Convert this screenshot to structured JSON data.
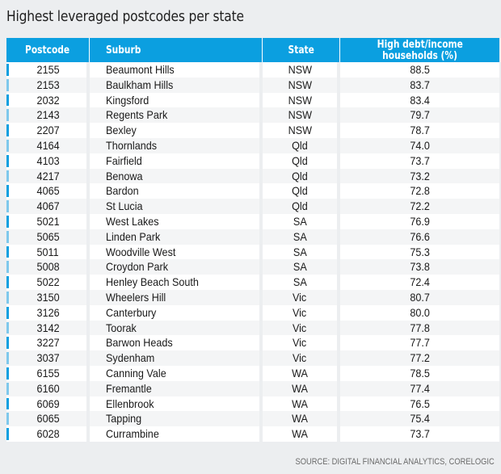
{
  "title": "Highest leveraged postcodes per state",
  "colors": {
    "header_bg": "#0b9fe0",
    "accent_dark": "#0b9fe0",
    "accent_light": "#7fc8ec",
    "page_bg": "#eceef0"
  },
  "headers": {
    "postcode": "Postcode",
    "suburb": "Suburb",
    "state": "State",
    "value_line1": "High debt/income",
    "value_line2": "households (%)"
  },
  "chart_data": {
    "type": "table",
    "title": "Highest leveraged postcodes per state",
    "columns": [
      "Postcode",
      "Suburb",
      "State",
      "High debt/income households (%)"
    ],
    "rows": [
      {
        "postcode": "2155",
        "suburb": "Beaumont Hills",
        "state": "NSW",
        "value": "88.5"
      },
      {
        "postcode": "2153",
        "suburb": "Baulkham Hills",
        "state": "NSW",
        "value": "83.7"
      },
      {
        "postcode": "2032",
        "suburb": "Kingsford",
        "state": "NSW",
        "value": "83.4"
      },
      {
        "postcode": "2143",
        "suburb": "Regents Park",
        "state": "NSW",
        "value": "79.7"
      },
      {
        "postcode": "2207",
        "suburb": "Bexley",
        "state": "NSW",
        "value": "78.7"
      },
      {
        "postcode": "4164",
        "suburb": "Thornlands",
        "state": "Qld",
        "value": "74.0"
      },
      {
        "postcode": "4103",
        "suburb": "Fairfield",
        "state": "Qld",
        "value": "73.7"
      },
      {
        "postcode": "4217",
        "suburb": "Benowa",
        "state": "Qld",
        "value": "73.2"
      },
      {
        "postcode": "4065",
        "suburb": "Bardon",
        "state": "Qld",
        "value": "72.8"
      },
      {
        "postcode": "4067",
        "suburb": "St Lucia",
        "state": "Qld",
        "value": "72.2"
      },
      {
        "postcode": "5021",
        "suburb": "West Lakes",
        "state": "SA",
        "value": "76.9"
      },
      {
        "postcode": "5065",
        "suburb": "Linden Park",
        "state": "SA",
        "value": "76.6"
      },
      {
        "postcode": "5011",
        "suburb": "Woodville West",
        "state": "SA",
        "value": "75.3"
      },
      {
        "postcode": "5008",
        "suburb": "Croydon Park",
        "state": "SA",
        "value": "73.8"
      },
      {
        "postcode": "5022",
        "suburb": "Henley Beach South",
        "state": "SA",
        "value": "72.4"
      },
      {
        "postcode": "3150",
        "suburb": "Wheelers Hill",
        "state": "Vic",
        "value": "80.7"
      },
      {
        "postcode": "3126",
        "suburb": "Canterbury",
        "state": "Vic",
        "value": "80.0"
      },
      {
        "postcode": "3142",
        "suburb": "Toorak",
        "state": "Vic",
        "value": "77.8"
      },
      {
        "postcode": "3227",
        "suburb": "Barwon Heads",
        "state": "Vic",
        "value": "77.7"
      },
      {
        "postcode": "3037",
        "suburb": "Sydenham",
        "state": "Vic",
        "value": "77.2"
      },
      {
        "postcode": "6155",
        "suburb": "Canning Vale",
        "state": "WA",
        "value": "78.5"
      },
      {
        "postcode": "6160",
        "suburb": "Fremantle",
        "state": "WA",
        "value": "77.4"
      },
      {
        "postcode": "6069",
        "suburb": "Ellenbrook",
        "state": "WA",
        "value": "76.5"
      },
      {
        "postcode": "6065",
        "suburb": "Tapping",
        "state": "WA",
        "value": "75.4"
      },
      {
        "postcode": "6028",
        "suburb": "Currambine",
        "state": "WA",
        "value": "73.7"
      }
    ]
  },
  "source": "SOURCE: DIGITAL FINANCIAL ANALYTICS, CORELOGIC"
}
